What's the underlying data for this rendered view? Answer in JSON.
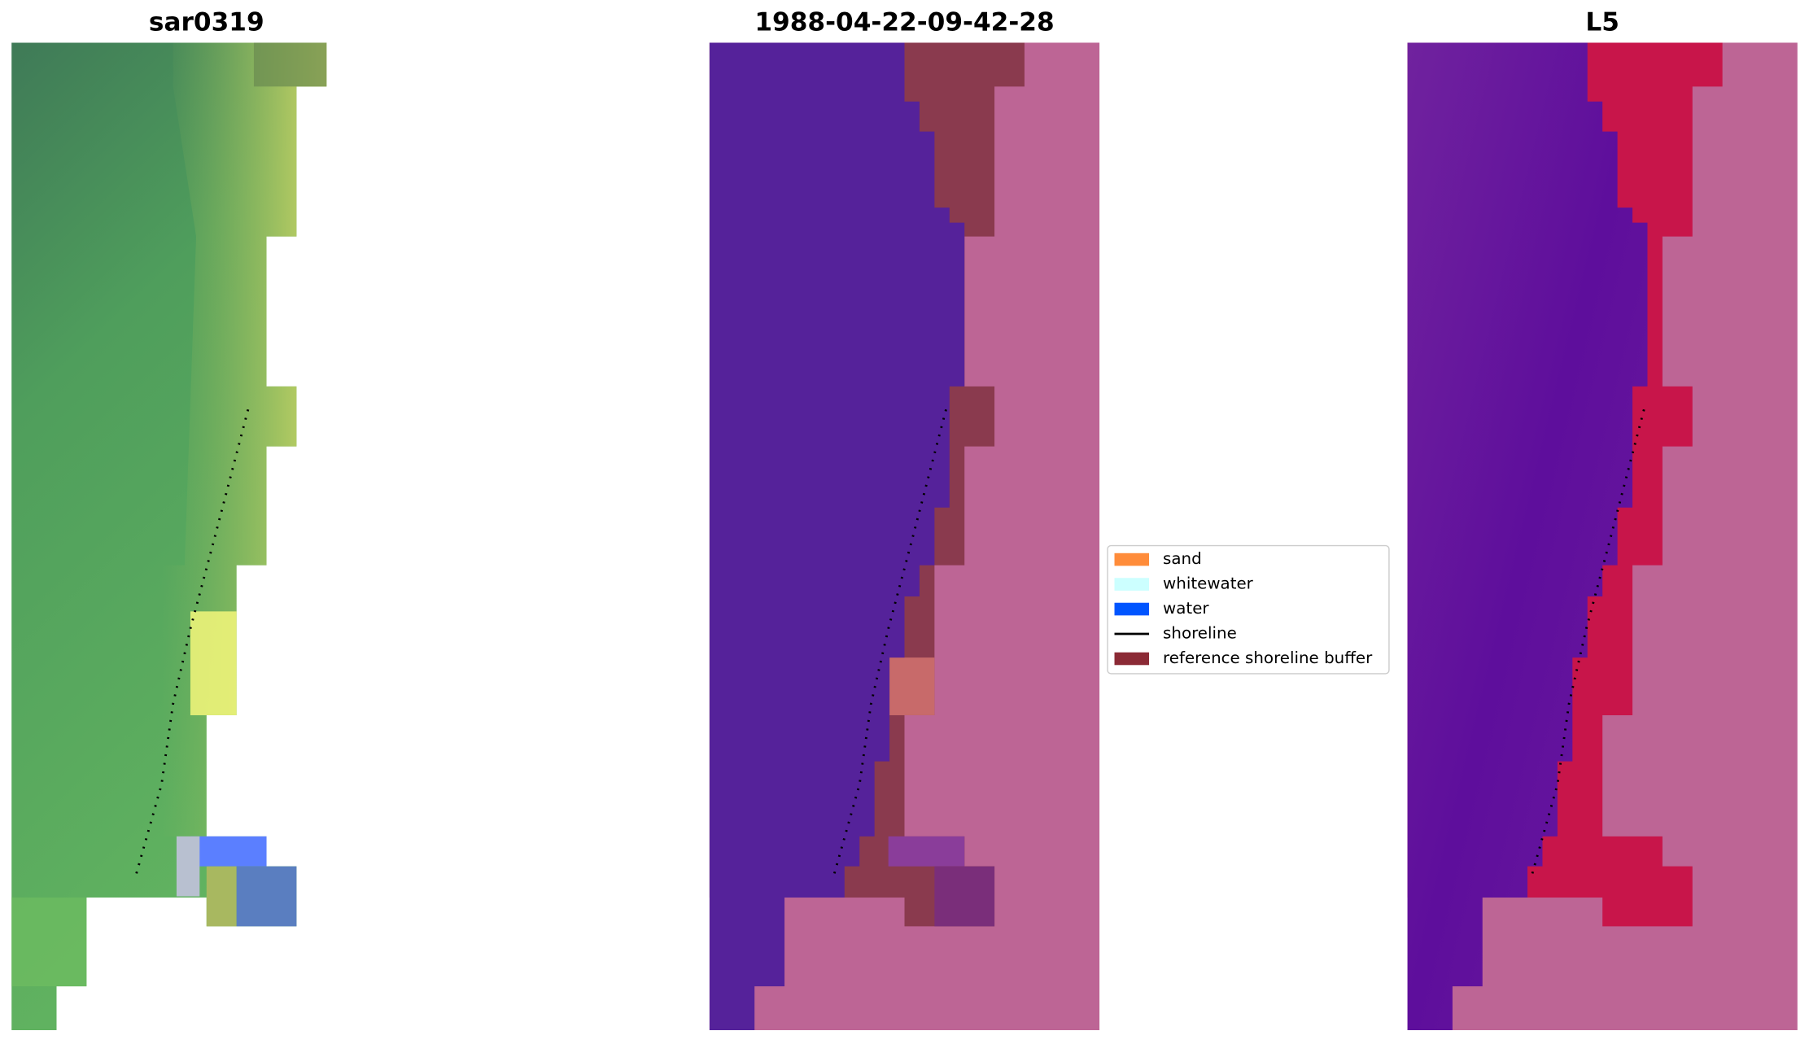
{
  "panels": [
    {
      "title": "sar0319"
    },
    {
      "title": "1988-04-22-09-42-28"
    },
    {
      "title": "L5"
    }
  ],
  "legend": {
    "items": [
      {
        "label": "sand",
        "color": "#ff8c3a"
      },
      {
        "label": "whitewater",
        "color": "#ccffff"
      },
      {
        "label": "water",
        "color": "#0055ff"
      },
      {
        "label": "shoreline",
        "color": "#000000"
      },
      {
        "label": "reference shoreline buffer",
        "color": "#8b2a35"
      }
    ]
  }
}
